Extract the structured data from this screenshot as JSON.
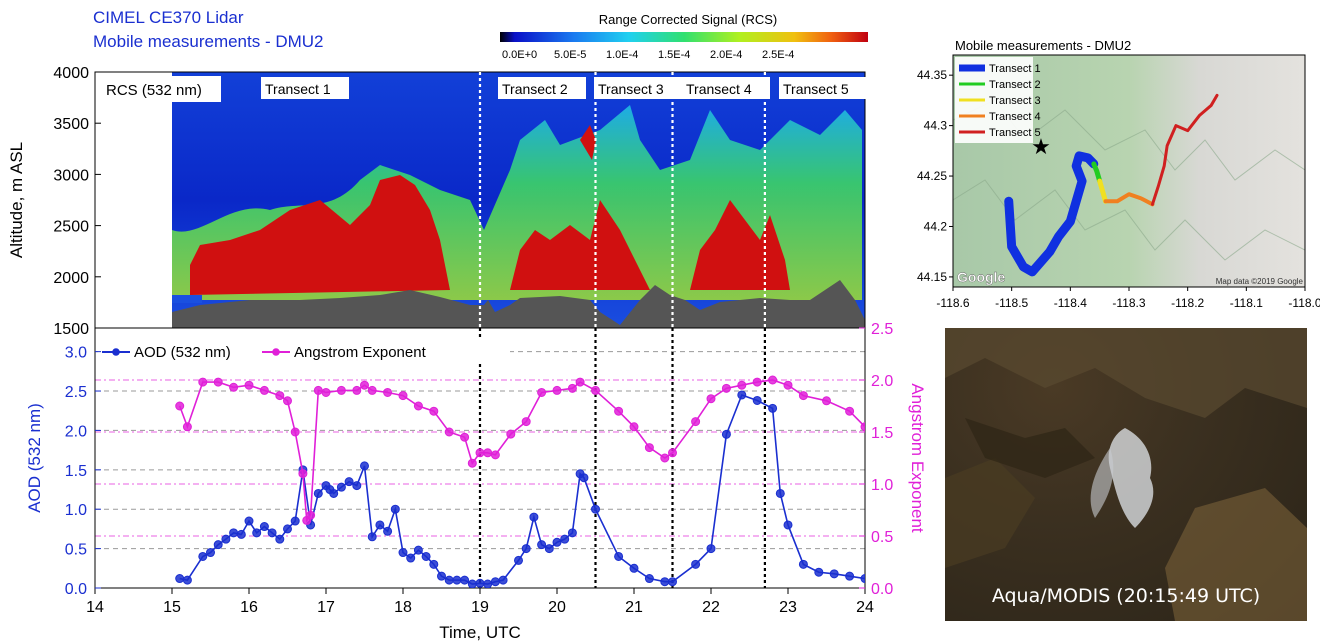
{
  "header": {
    "line1": "CIMEL CE370 Lidar",
    "line2": "Mobile measurements - DMU2"
  },
  "colorbar": {
    "title": "Range Corrected Signal (RCS)",
    "ticks": [
      "0.0E+0",
      "5.0E-5",
      "1.0E-4",
      "1.5E-4",
      "2.0E-4",
      "2.5E-4"
    ]
  },
  "lidar_panel": {
    "label": "RCS (532 nm)",
    "transects": [
      "Transect 1",
      "Transect 2",
      "Transect 3",
      "Transect 4",
      "Transect 5"
    ],
    "dividers_utc": [
      19.0,
      20.5,
      21.5,
      22.7
    ]
  },
  "map_panel": {
    "title": "Mobile measurements - DMU2",
    "legend": [
      {
        "label": "Transect 1",
        "color": "#1030e0"
      },
      {
        "label": "Transect 2",
        "color": "#22cc22"
      },
      {
        "label": "Transect 3",
        "color": "#f0e020"
      },
      {
        "label": "Transect 4",
        "color": "#f08020"
      },
      {
        "label": "Transect 5",
        "color": "#d02020"
      }
    ],
    "google_label": "Google",
    "credit": "Map data ©2019 Google"
  },
  "modis": {
    "label": "Aqua/MODIS (20:15:49 UTC)"
  },
  "chart_data": [
    {
      "type": "heatmap",
      "ylabel": "Altitude, m  ASL",
      "xlim": [
        14,
        24
      ],
      "ylim": [
        1500,
        4000
      ],
      "yticks": [
        1500,
        2000,
        2500,
        3000,
        3500,
        4000
      ],
      "colorscale_range": [
        0.0,
        0.0003
      ],
      "colors": {
        "low": "#0a1ed8",
        "mid": "#22cc55",
        "high": "#d01010",
        "ground": "#555555"
      }
    },
    {
      "type": "line",
      "xlabel": "Time, UTC",
      "ylabel": "AOD (532 nm)",
      "y2label": "Angstrom Exponent",
      "xlim": [
        14,
        24
      ],
      "ylim": [
        0,
        3.3
      ],
      "y2lim": [
        0,
        2.5
      ],
      "xticks": [
        14,
        15,
        16,
        17,
        18,
        19,
        20,
        21,
        22,
        23,
        24
      ],
      "yticks": [
        "0.0",
        "0.5",
        "1.0",
        "1.5",
        "2.0",
        "2.5",
        "3.0"
      ],
      "y2ticks": [
        "0.0",
        "0.5",
        "1.0",
        "1.5",
        "2.0",
        "2.5"
      ],
      "dividers_utc": [
        19.0,
        20.5,
        21.5,
        22.7
      ],
      "series": [
        {
          "name": "AOD (532 nm)",
          "axis": "left",
          "color": "#1a2fd0",
          "x": [
            15.1,
            15.2,
            15.4,
            15.5,
            15.6,
            15.7,
            15.8,
            15.9,
            16.0,
            16.1,
            16.2,
            16.3,
            16.4,
            16.5,
            16.6,
            16.7,
            16.8,
            16.9,
            17.0,
            17.05,
            17.1,
            17.2,
            17.3,
            17.4,
            17.5,
            17.6,
            17.7,
            17.8,
            17.9,
            18.0,
            18.1,
            18.2,
            18.3,
            18.4,
            18.5,
            18.6,
            18.7,
            18.8,
            18.9,
            19.0,
            19.1,
            19.2,
            19.3,
            19.5,
            19.6,
            19.7,
            19.8,
            19.9,
            20.0,
            20.1,
            20.2,
            20.3,
            20.35,
            20.5,
            20.8,
            21.0,
            21.2,
            21.4,
            21.5,
            21.8,
            22.0,
            22.2,
            22.4,
            22.6,
            22.8,
            22.9,
            23.0,
            23.2,
            23.4,
            23.6,
            23.8,
            24.0
          ],
          "y": [
            0.12,
            0.1,
            0.4,
            0.45,
            0.55,
            0.62,
            0.7,
            0.68,
            0.85,
            0.7,
            0.78,
            0.7,
            0.62,
            0.75,
            0.85,
            1.5,
            0.8,
            1.2,
            1.3,
            1.25,
            1.2,
            1.28,
            1.35,
            1.3,
            1.55,
            0.65,
            0.8,
            0.72,
            1.0,
            0.45,
            0.38,
            0.48,
            0.4,
            0.3,
            0.15,
            0.1,
            0.1,
            0.1,
            0.05,
            0.06,
            0.05,
            0.08,
            0.1,
            0.35,
            0.5,
            0.9,
            0.55,
            0.5,
            0.58,
            0.62,
            0.7,
            1.45,
            1.4,
            1.0,
            0.4,
            0.25,
            0.12,
            0.08,
            0.08,
            0.3,
            0.5,
            1.95,
            2.45,
            2.38,
            2.28,
            1.2,
            0.8,
            0.3,
            0.2,
            0.18,
            0.15,
            0.12
          ]
        },
        {
          "name": "Angstrom Exponent",
          "axis": "right",
          "color": "#e020d8",
          "x": [
            15.1,
            15.2,
            15.4,
            15.6,
            15.8,
            16.0,
            16.2,
            16.4,
            16.5,
            16.6,
            16.7,
            16.75,
            16.8,
            16.9,
            17.0,
            17.2,
            17.4,
            17.5,
            17.6,
            17.8,
            18.0,
            18.2,
            18.4,
            18.6,
            18.8,
            18.9,
            19.0,
            19.1,
            19.2,
            19.4,
            19.6,
            19.8,
            20.0,
            20.2,
            20.3,
            20.5,
            20.8,
            21.0,
            21.2,
            21.4,
            21.5,
            21.8,
            22.0,
            22.2,
            22.4,
            22.6,
            22.8,
            23.0,
            23.2,
            23.5,
            23.8,
            24.0
          ],
          "y": [
            1.75,
            1.55,
            1.98,
            1.98,
            1.93,
            1.95,
            1.9,
            1.85,
            1.8,
            1.5,
            1.1,
            0.65,
            0.7,
            1.9,
            1.88,
            1.9,
            1.9,
            1.95,
            1.9,
            1.88,
            1.85,
            1.75,
            1.7,
            1.5,
            1.45,
            1.2,
            1.3,
            1.3,
            1.28,
            1.48,
            1.6,
            1.88,
            1.9,
            1.92,
            1.98,
            1.9,
            1.7,
            1.55,
            1.35,
            1.25,
            1.3,
            1.6,
            1.82,
            1.92,
            1.95,
            1.98,
            2.0,
            1.95,
            1.85,
            1.8,
            1.7,
            1.55
          ]
        }
      ]
    },
    {
      "type": "line",
      "title": "Mobile measurements - DMU2",
      "xlim": [
        -118.6,
        -118.0
      ],
      "ylim": [
        44.14,
        44.37
      ],
      "xticks": [
        "-118.6",
        "-118.5",
        "-118.4",
        "-118.3",
        "-118.2",
        "-118.1",
        "-118.0"
      ],
      "yticks": [
        "44.15",
        "44.2",
        "44.25",
        "44.3",
        "44.35"
      ],
      "series": [
        {
          "name": "Transect 1",
          "color": "#1030e0",
          "x": [
            -118.505,
            -118.5,
            -118.48,
            -118.465,
            -118.45,
            -118.435,
            -118.42,
            -118.4,
            -118.39,
            -118.38,
            -118.39,
            -118.385,
            -118.37,
            -118.36
          ],
          "y": [
            44.225,
            44.18,
            44.16,
            44.155,
            44.165,
            44.175,
            44.19,
            44.205,
            44.225,
            44.245,
            44.26,
            44.27,
            44.268,
            44.262
          ]
        },
        {
          "name": "Transect 2",
          "color": "#22cc22",
          "x": [
            -118.36,
            -118.355,
            -118.35
          ],
          "y": [
            44.262,
            44.255,
            44.245
          ]
        },
        {
          "name": "Transect 3",
          "color": "#f0e020",
          "x": [
            -118.35,
            -118.345,
            -118.34
          ],
          "y": [
            44.245,
            44.235,
            44.225
          ]
        },
        {
          "name": "Transect 4",
          "color": "#f08020",
          "x": [
            -118.34,
            -118.32,
            -118.3,
            -118.28,
            -118.26
          ],
          "y": [
            44.225,
            44.225,
            44.232,
            44.228,
            44.222
          ]
        },
        {
          "name": "Transect 5",
          "color": "#d02020",
          "x": [
            -118.26,
            -118.25,
            -118.24,
            -118.235,
            -118.22,
            -118.2,
            -118.18,
            -118.16,
            -118.15
          ],
          "y": [
            44.222,
            44.24,
            44.26,
            44.28,
            44.3,
            44.295,
            44.31,
            44.32,
            44.33
          ]
        }
      ],
      "marker": {
        "label": "star",
        "x": -118.45,
        "y": 44.28
      }
    }
  ]
}
